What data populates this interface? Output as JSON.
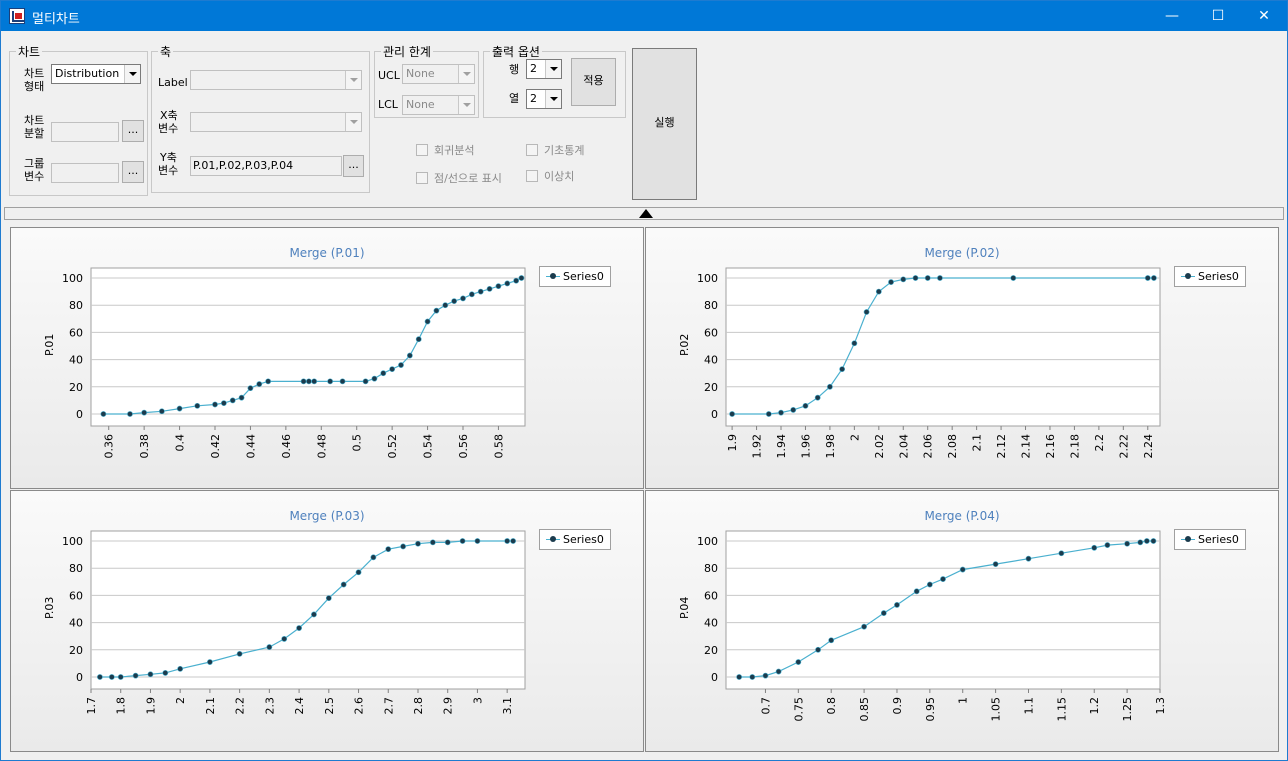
{
  "window": {
    "title": "멀티차트",
    "minimize": "—",
    "maximize": "☐",
    "close": "✕"
  },
  "chart_group": {
    "legend": "차트",
    "type_label_1": "차트",
    "type_label_2": "형태",
    "type_value": "Distribution",
    "split_label_1": "차트",
    "split_label_2": "분할",
    "split_button": "...",
    "group_label_1": "그룹",
    "group_label_2": "변수",
    "group_button": "..."
  },
  "axis_group": {
    "legend": "축",
    "label_label": "Label",
    "x_label_1": "X축",
    "x_label_2": "변수",
    "y_label_1": "Y축",
    "y_label_2": "변수",
    "y_value": "P.01,P.02,P.03,P.04",
    "y_button": "..."
  },
  "control_group": {
    "legend": "관리 한계",
    "ucl_label": "UCL",
    "ucl_value": "None",
    "lcl_label": "LCL",
    "lcl_value": "None"
  },
  "output_group": {
    "legend": "출력 옵션",
    "row_label": "행",
    "row_value": "2",
    "col_label": "열",
    "col_value": "2",
    "apply_button": "적용"
  },
  "run_button": "실행",
  "checkboxes": {
    "regression": "회귀분석",
    "basic_stats": "기초통계",
    "point_line": "점/선으로 표시",
    "outlier": "이상치"
  },
  "colors": {
    "line": "#4ab0cf",
    "marker": "#1b3b4d",
    "title": "#4f81bd",
    "grid": "#c8c8c8"
  },
  "chart_data": [
    {
      "type": "line",
      "title": "Merge (P.01)",
      "ylabel": "P.01",
      "legend": "Series0",
      "xlim": [
        0.35,
        0.595
      ],
      "ylim": [
        0,
        100
      ],
      "xticks": [
        "0.36",
        "0.38",
        "0.4",
        "0.42",
        "0.44",
        "0.46",
        "0.48",
        "0.5",
        "0.52",
        "0.54",
        "0.56",
        "0.58"
      ],
      "yticks": [
        "0",
        "20",
        "40",
        "60",
        "80",
        "100"
      ],
      "x": [
        0.357,
        0.372,
        0.38,
        0.39,
        0.4,
        0.41,
        0.42,
        0.425,
        0.43,
        0.435,
        0.44,
        0.445,
        0.45,
        0.47,
        0.473,
        0.476,
        0.485,
        0.492,
        0.505,
        0.51,
        0.515,
        0.52,
        0.525,
        0.53,
        0.535,
        0.54,
        0.545,
        0.55,
        0.555,
        0.56,
        0.565,
        0.57,
        0.575,
        0.58,
        0.585,
        0.59,
        0.593
      ],
      "y": [
        0,
        0,
        1,
        2,
        4,
        6,
        7,
        8,
        10,
        12,
        19,
        22,
        24,
        24,
        24,
        24,
        24,
        24,
        24,
        26,
        30,
        33,
        36,
        43,
        55,
        68,
        76,
        80,
        83,
        85,
        88,
        90,
        92,
        94,
        96,
        98,
        100
      ]
    },
    {
      "type": "line",
      "title": "Merge (P.02)",
      "ylabel": "P.02",
      "legend": "Series0",
      "xlim": [
        1.895,
        2.25
      ],
      "ylim": [
        0,
        100
      ],
      "xticks": [
        "1.9",
        "1.92",
        "1.94",
        "1.96",
        "1.98",
        "2",
        "2.02",
        "2.04",
        "2.06",
        "2.08",
        "2.1",
        "2.12",
        "2.14",
        "2.16",
        "2.18",
        "2.2",
        "2.22",
        "2.24"
      ],
      "yticks": [
        "0",
        "20",
        "40",
        "60",
        "80",
        "100"
      ],
      "x": [
        1.9,
        1.93,
        1.94,
        1.95,
        1.96,
        1.97,
        1.98,
        1.99,
        2.0,
        2.01,
        2.02,
        2.03,
        2.04,
        2.05,
        2.06,
        2.07,
        2.13,
        2.24,
        2.245
      ],
      "y": [
        0,
        0,
        1,
        3,
        6,
        12,
        20,
        33,
        52,
        75,
        90,
        97,
        99,
        100,
        100,
        100,
        100,
        100,
        100
      ]
    },
    {
      "type": "line",
      "title": "Merge (P.03)",
      "ylabel": "P.03",
      "legend": "Series0",
      "xlim": [
        1.7,
        3.16
      ],
      "ylim": [
        0,
        100
      ],
      "xticks": [
        "1.7",
        "1.8",
        "1.9",
        "2",
        "2.1",
        "2.2",
        "2.3",
        "2.4",
        "2.5",
        "2.6",
        "2.7",
        "2.8",
        "2.9",
        "3",
        "3.1"
      ],
      "yticks": [
        "0",
        "20",
        "40",
        "60",
        "80",
        "100"
      ],
      "x": [
        1.73,
        1.77,
        1.8,
        1.85,
        1.9,
        1.95,
        2.0,
        2.1,
        2.2,
        2.3,
        2.35,
        2.4,
        2.45,
        2.5,
        2.55,
        2.6,
        2.65,
        2.7,
        2.75,
        2.8,
        2.85,
        2.9,
        2.95,
        3.0,
        3.1,
        3.12
      ],
      "y": [
        0,
        0,
        0,
        1,
        2,
        3,
        6,
        11,
        17,
        22,
        28,
        36,
        46,
        58,
        68,
        77,
        88,
        94,
        96,
        98,
        99,
        99,
        100,
        100,
        100,
        100
      ]
    },
    {
      "type": "line",
      "title": "Merge (P.04)",
      "ylabel": "P.04",
      "legend": "Series0",
      "xlim": [
        0.64,
        1.3
      ],
      "ylim": [
        0,
        100
      ],
      "xticks": [
        "0.7",
        "0.75",
        "0.8",
        "0.85",
        "0.9",
        "0.95",
        "1",
        "1.05",
        "1.1",
        "1.15",
        "1.2",
        "1.25",
        "1.3"
      ],
      "yticks": [
        "0",
        "20",
        "40",
        "60",
        "80",
        "100"
      ],
      "x": [
        0.66,
        0.68,
        0.7,
        0.72,
        0.75,
        0.78,
        0.8,
        0.85,
        0.88,
        0.9,
        0.93,
        0.95,
        0.97,
        1.0,
        1.05,
        1.1,
        1.15,
        1.2,
        1.22,
        1.25,
        1.27,
        1.28,
        1.29
      ],
      "y": [
        0,
        0,
        1,
        4,
        11,
        20,
        27,
        37,
        47,
        53,
        63,
        68,
        72,
        79,
        83,
        87,
        91,
        95,
        97,
        98,
        99,
        100,
        100
      ]
    }
  ]
}
